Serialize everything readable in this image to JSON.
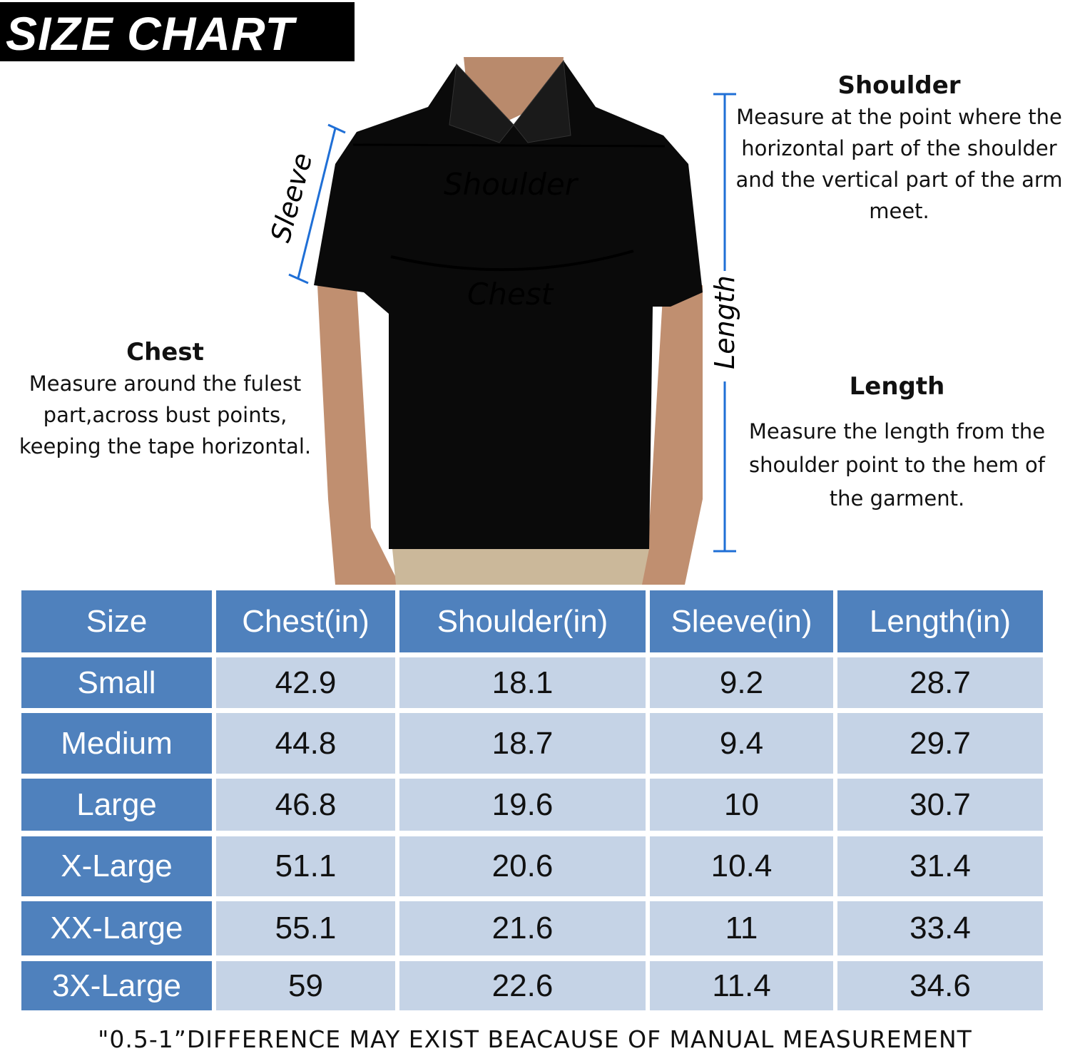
{
  "title": "SIZE CHART",
  "diagram_labels": {
    "shoulder": "Shoulder",
    "chest": "Chest",
    "sleeve": "Sleeve",
    "length": "Length"
  },
  "notes": {
    "shoulder": {
      "heading": "Shoulder",
      "text": "Measure at the point where the horizontal part of the shoulder and the vertical part of the arm meet."
    },
    "chest": {
      "heading": "Chest",
      "text": "Measure around the fulest part,across bust points, keeping the tape horizontal."
    },
    "length": {
      "heading": "Length",
      "text": "Measure the length from the shoulder point to the hem of the garment."
    }
  },
  "colors": {
    "header": "#4f81bd",
    "body": "#c5d3e6",
    "measure_line": "#1f6fd6",
    "shirt": "#0a0a0a"
  },
  "table": {
    "headers": [
      "Size",
      "Chest(in)",
      "Shoulder(in)",
      "Sleeve(in)",
      "Length(in)"
    ],
    "rows": [
      [
        "Small",
        "42.9",
        "18.1",
        "9.2",
        "28.7"
      ],
      [
        "Medium",
        "44.8",
        "18.7",
        "9.4",
        "29.7"
      ],
      [
        "Large",
        "46.8",
        "19.6",
        "10",
        "30.7"
      ],
      [
        "X-Large",
        "51.1",
        "20.6",
        "10.4",
        "31.4"
      ],
      [
        "XX-Large",
        "55.1",
        "21.6",
        "11",
        "33.4"
      ],
      [
        "3X-Large",
        "59",
        "22.6",
        "11.4",
        "34.6"
      ]
    ]
  },
  "footer": "\"0.5-1”DIFFERENCE MAY EXIST BEACAUSE OF MANUAL MEASUREMENT"
}
